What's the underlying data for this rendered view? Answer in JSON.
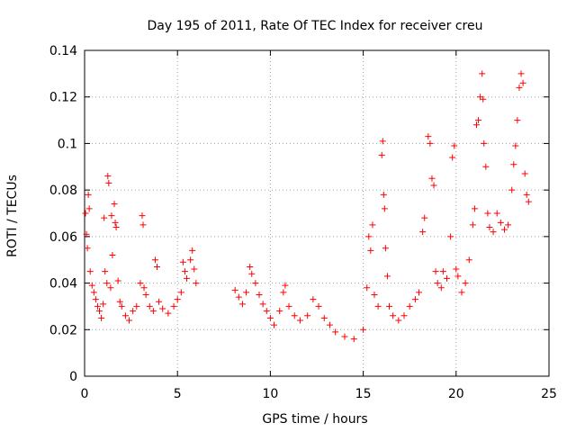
{
  "chart_data": {
    "type": "scatter",
    "title": "Day 195 of 2011, Rate Of TEC Index for receiver creu",
    "xlabel": "GPS time / hours",
    "ylabel": "ROTI / TECUs",
    "xlim": [
      0,
      25
    ],
    "ylim": [
      0,
      0.14
    ],
    "xticks": [
      0,
      5,
      10,
      15,
      20,
      25
    ],
    "yticks": [
      0,
      0.02,
      0.04,
      0.06,
      0.08,
      0.1,
      0.12,
      0.14
    ],
    "ytick_labels": [
      "0",
      "0.02",
      "0.04",
      "0.06",
      "0.08",
      "0.1",
      "0.12",
      "0.14"
    ],
    "grid": true,
    "marker": "+",
    "color": "#ff0000",
    "series": [
      {
        "points": [
          [
            0.05,
            0.07
          ],
          [
            0.1,
            0.061
          ],
          [
            0.15,
            0.055
          ],
          [
            0.2,
            0.078
          ],
          [
            0.25,
            0.072
          ],
          [
            0.3,
            0.045
          ],
          [
            0.4,
            0.039
          ],
          [
            0.5,
            0.036
          ],
          [
            0.6,
            0.033
          ],
          [
            0.7,
            0.03
          ],
          [
            0.8,
            0.028
          ],
          [
            0.9,
            0.025
          ],
          [
            1.0,
            0.031
          ],
          [
            1.05,
            0.068
          ],
          [
            1.1,
            0.045
          ],
          [
            1.2,
            0.04
          ],
          [
            1.25,
            0.086
          ],
          [
            1.3,
            0.083
          ],
          [
            1.4,
            0.038
          ],
          [
            1.45,
            0.069
          ],
          [
            1.5,
            0.052
          ],
          [
            1.6,
            0.074
          ],
          [
            1.65,
            0.066
          ],
          [
            1.7,
            0.064
          ],
          [
            1.8,
            0.041
          ],
          [
            1.9,
            0.032
          ],
          [
            2.0,
            0.03
          ],
          [
            2.2,
            0.026
          ],
          [
            2.4,
            0.024
          ],
          [
            2.6,
            0.028
          ],
          [
            2.8,
            0.03
          ],
          [
            3.0,
            0.04
          ],
          [
            3.1,
            0.069
          ],
          [
            3.15,
            0.065
          ],
          [
            3.2,
            0.038
          ],
          [
            3.3,
            0.035
          ],
          [
            3.5,
            0.03
          ],
          [
            3.7,
            0.028
          ],
          [
            3.8,
            0.05
          ],
          [
            3.9,
            0.047
          ],
          [
            4.0,
            0.032
          ],
          [
            4.2,
            0.029
          ],
          [
            4.5,
            0.027
          ],
          [
            4.8,
            0.03
          ],
          [
            5.0,
            0.033
          ],
          [
            5.2,
            0.036
          ],
          [
            5.3,
            0.049
          ],
          [
            5.4,
            0.045
          ],
          [
            5.5,
            0.042
          ],
          [
            5.7,
            0.05
          ],
          [
            5.8,
            0.054
          ],
          [
            5.9,
            0.046
          ],
          [
            6.0,
            0.04
          ],
          [
            8.1,
            0.037
          ],
          [
            8.3,
            0.034
          ],
          [
            8.5,
            0.031
          ],
          [
            8.7,
            0.036
          ],
          [
            8.9,
            0.047
          ],
          [
            9.0,
            0.044
          ],
          [
            9.2,
            0.04
          ],
          [
            9.4,
            0.035
          ],
          [
            9.6,
            0.031
          ],
          [
            9.8,
            0.028
          ],
          [
            10.0,
            0.025
          ],
          [
            10.2,
            0.022
          ],
          [
            10.5,
            0.028
          ],
          [
            10.7,
            0.036
          ],
          [
            10.8,
            0.039
          ],
          [
            11.0,
            0.03
          ],
          [
            11.3,
            0.026
          ],
          [
            11.6,
            0.024
          ],
          [
            12.0,
            0.026
          ],
          [
            12.3,
            0.033
          ],
          [
            12.6,
            0.03
          ],
          [
            12.9,
            0.025
          ],
          [
            13.2,
            0.022
          ],
          [
            13.5,
            0.019
          ],
          [
            14.0,
            0.017
          ],
          [
            14.5,
            0.016
          ],
          [
            15.0,
            0.02
          ],
          [
            15.2,
            0.038
          ],
          [
            15.3,
            0.06
          ],
          [
            15.4,
            0.054
          ],
          [
            15.5,
            0.065
          ],
          [
            15.6,
            0.035
          ],
          [
            15.8,
            0.03
          ],
          [
            16.0,
            0.095
          ],
          [
            16.05,
            0.101
          ],
          [
            16.1,
            0.078
          ],
          [
            16.15,
            0.072
          ],
          [
            16.2,
            0.055
          ],
          [
            16.3,
            0.043
          ],
          [
            16.4,
            0.03
          ],
          [
            16.6,
            0.026
          ],
          [
            16.9,
            0.024
          ],
          [
            17.2,
            0.026
          ],
          [
            17.5,
            0.03
          ],
          [
            17.8,
            0.033
          ],
          [
            18.0,
            0.036
          ],
          [
            18.2,
            0.062
          ],
          [
            18.3,
            0.068
          ],
          [
            18.5,
            0.103
          ],
          [
            18.6,
            0.1
          ],
          [
            18.7,
            0.085
          ],
          [
            18.8,
            0.082
          ],
          [
            18.9,
            0.045
          ],
          [
            19.0,
            0.04
          ],
          [
            19.2,
            0.038
          ],
          [
            19.3,
            0.045
          ],
          [
            19.5,
            0.042
          ],
          [
            19.7,
            0.06
          ],
          [
            19.8,
            0.094
          ],
          [
            19.9,
            0.099
          ],
          [
            20.0,
            0.046
          ],
          [
            20.1,
            0.043
          ],
          [
            20.3,
            0.036
          ],
          [
            20.5,
            0.04
          ],
          [
            20.7,
            0.05
          ],
          [
            20.9,
            0.065
          ],
          [
            21.0,
            0.072
          ],
          [
            21.1,
            0.108
          ],
          [
            21.2,
            0.11
          ],
          [
            21.3,
            0.12
          ],
          [
            21.4,
            0.13
          ],
          [
            21.45,
            0.119
          ],
          [
            21.5,
            0.1
          ],
          [
            21.6,
            0.09
          ],
          [
            21.7,
            0.07
          ],
          [
            21.8,
            0.064
          ],
          [
            22.0,
            0.062
          ],
          [
            22.2,
            0.07
          ],
          [
            22.4,
            0.066
          ],
          [
            22.6,
            0.063
          ],
          [
            22.8,
            0.065
          ],
          [
            23.0,
            0.08
          ],
          [
            23.1,
            0.091
          ],
          [
            23.2,
            0.099
          ],
          [
            23.3,
            0.11
          ],
          [
            23.4,
            0.124
          ],
          [
            23.5,
            0.13
          ],
          [
            23.6,
            0.126
          ],
          [
            23.7,
            0.087
          ],
          [
            23.8,
            0.078
          ],
          [
            23.9,
            0.075
          ]
        ]
      }
    ]
  }
}
